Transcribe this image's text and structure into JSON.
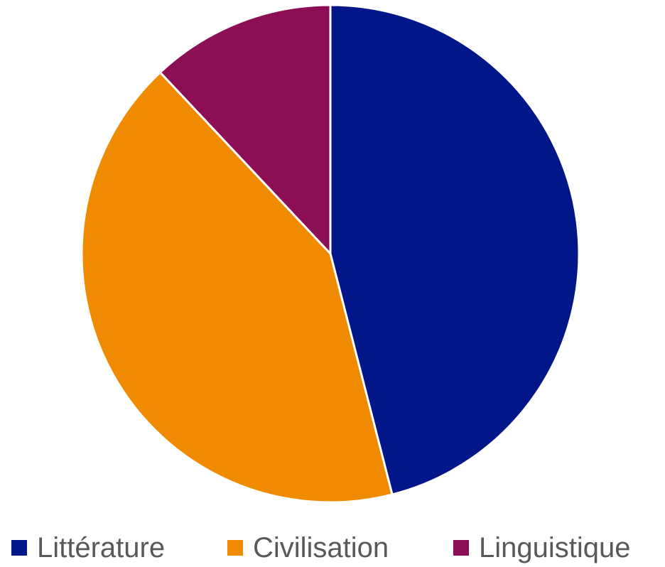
{
  "chart_data": {
    "type": "pie",
    "categories": [
      "Littérature",
      "Civilisation",
      "Linguistique"
    ],
    "values": [
      46,
      42,
      12
    ],
    "colors": [
      "#001689",
      "#F08A00",
      "#8C0E55"
    ],
    "start_angle_deg": 0,
    "direction": "clockwise",
    "legend_position": "bottom"
  }
}
